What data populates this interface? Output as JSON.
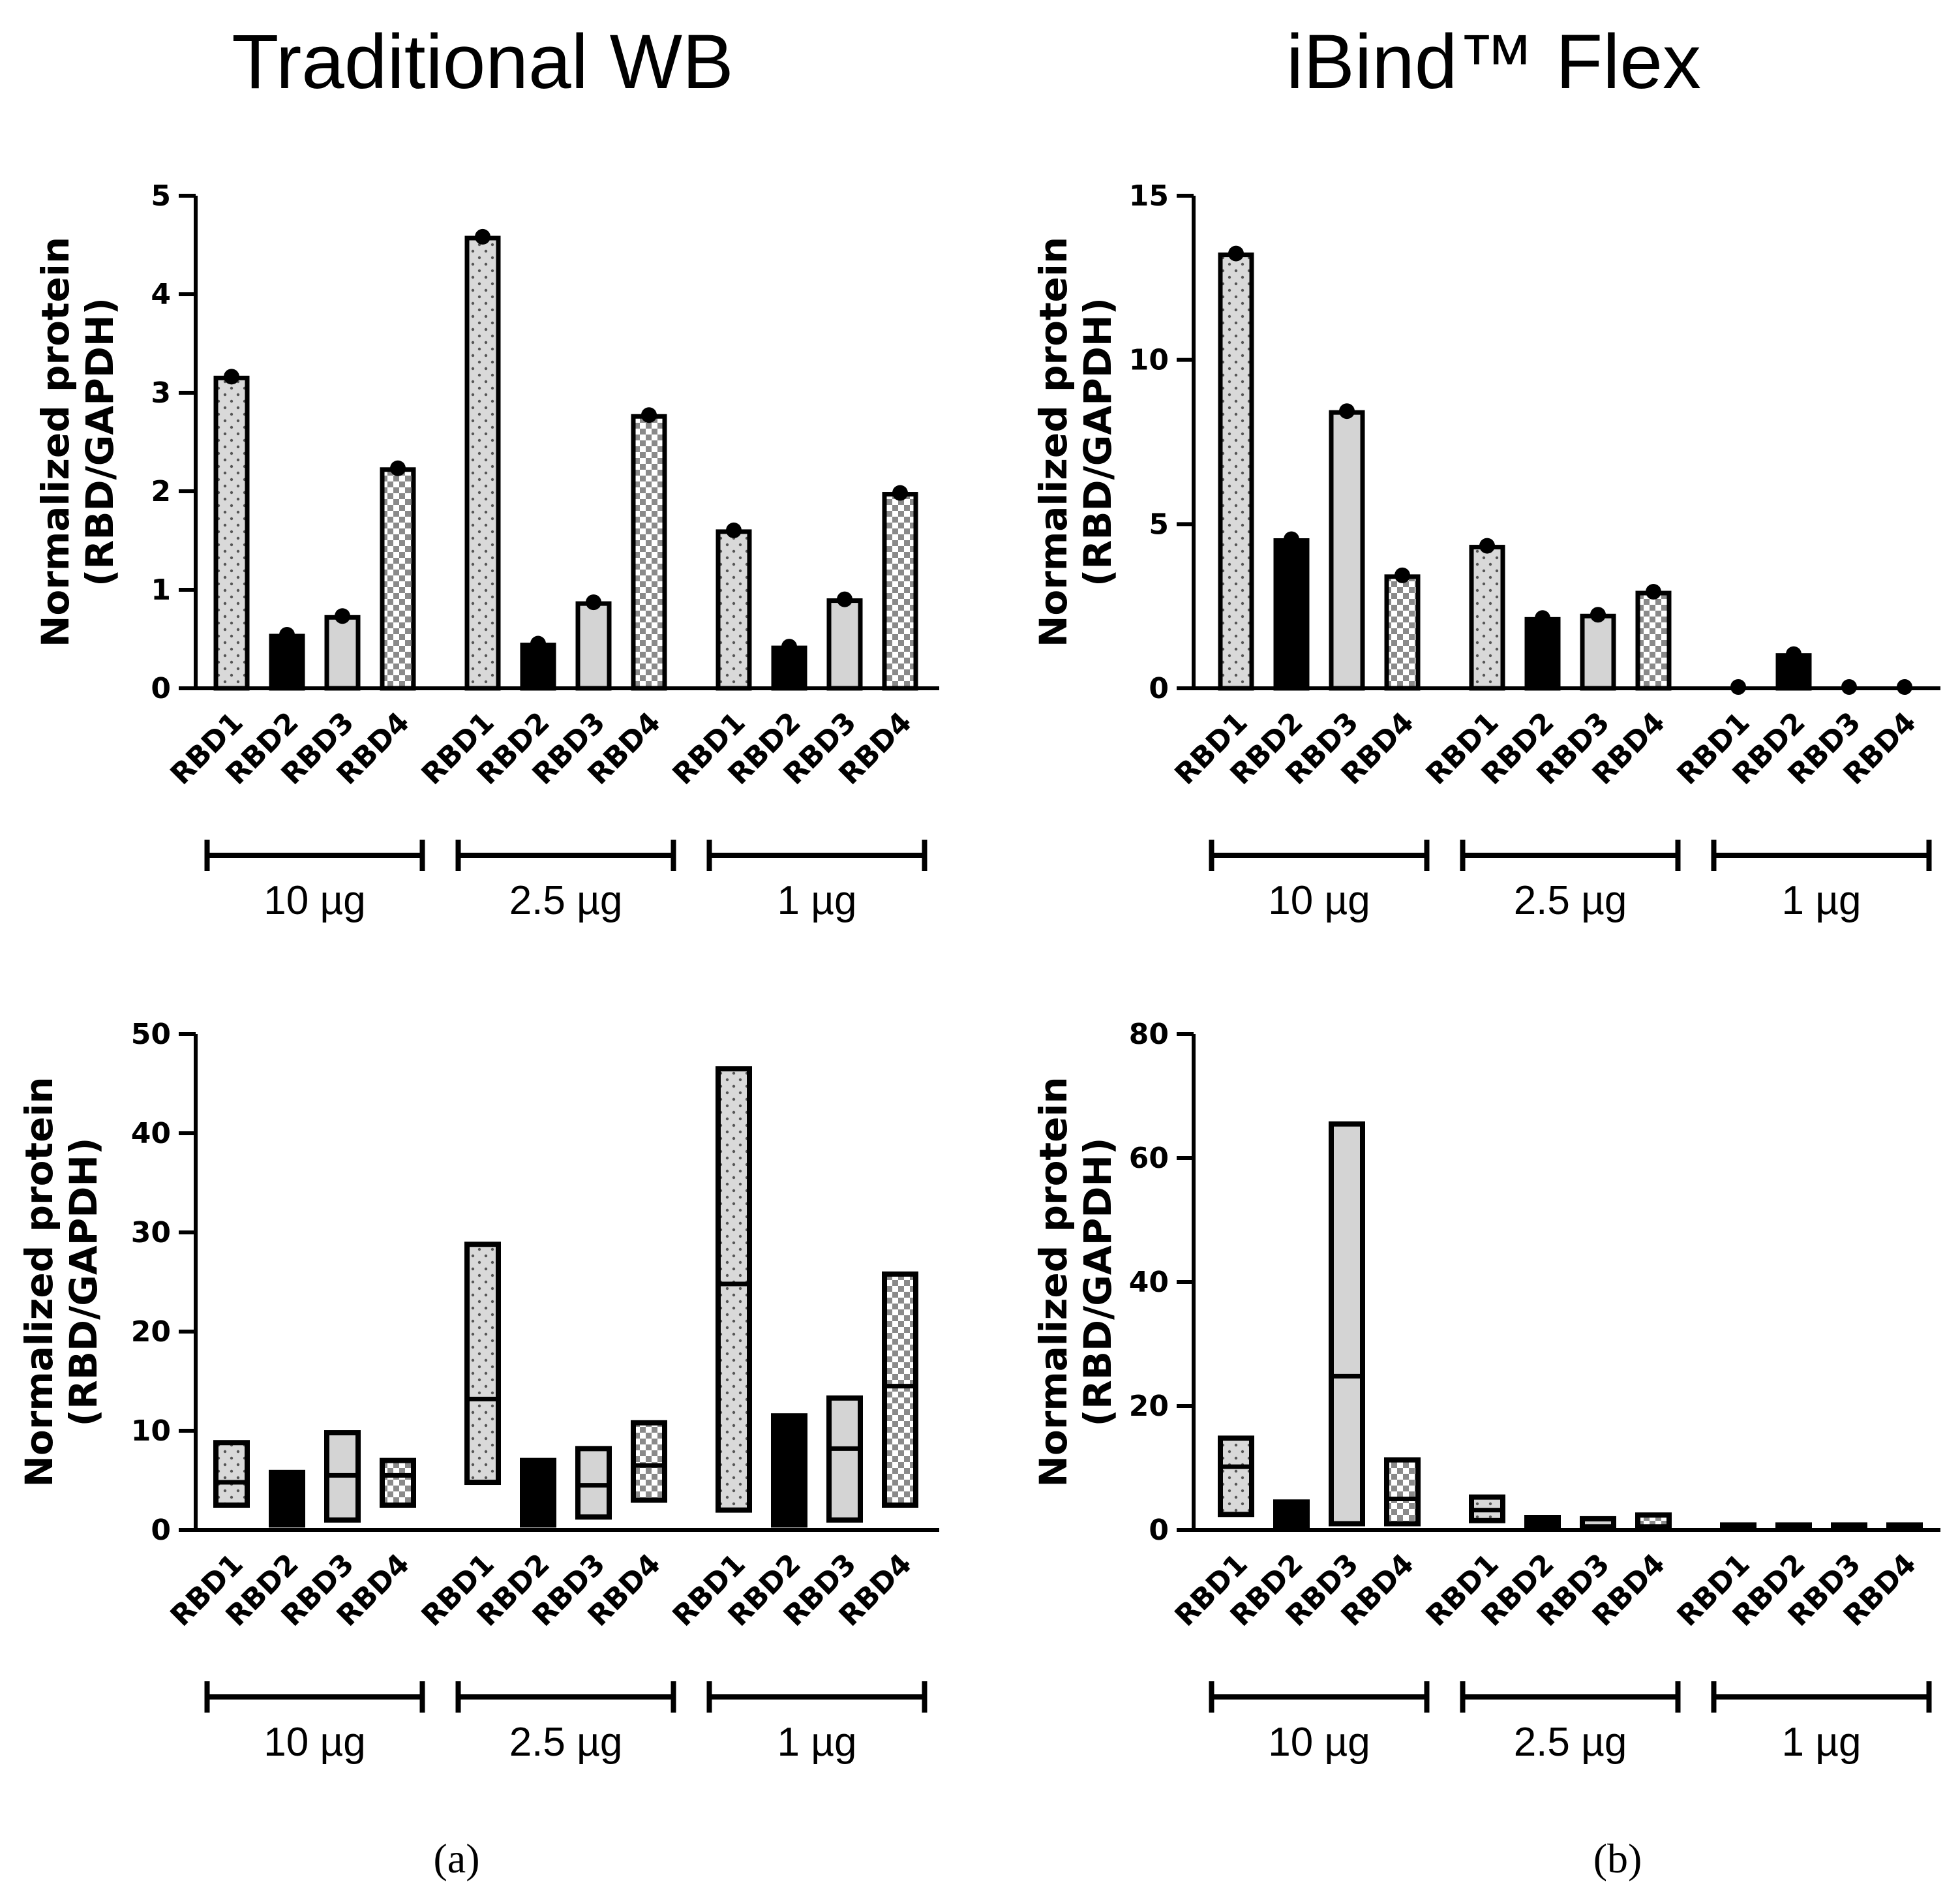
{
  "titles": {
    "left": "Traditional WB",
    "right": "iBind™ Flex"
  },
  "panel_labels": {
    "a": "(a)",
    "b": "(b)"
  },
  "colors": {
    "dotted_fill": "#d9d9d9",
    "light_fill": "#d4d4d4",
    "dark_fill": "#000000",
    "stroke": "#000000"
  },
  "chart_data": [
    {
      "id": "top-left",
      "type": "bar",
      "ylabel": [
        "Normalized protein",
        "(RBD/GAPDH)"
      ],
      "ylim": [
        0,
        5
      ],
      "yticks": [
        0,
        1,
        2,
        3,
        4,
        5
      ],
      "categories": [
        "RBD1",
        "RBD2",
        "RBD3",
        "RBD4"
      ],
      "group_labels": [
        "10 µg",
        "2.5 µg",
        "1 µg"
      ],
      "groups": [
        {
          "name": "10 µg",
          "values": [
            3.15,
            0.53,
            0.72,
            2.22
          ]
        },
        {
          "name": "2.5 µg",
          "values": [
            4.57,
            0.44,
            0.86,
            2.76
          ]
        },
        {
          "name": "1 µg",
          "values": [
            1.59,
            0.41,
            0.89,
            1.97
          ]
        }
      ]
    },
    {
      "id": "top-right",
      "type": "bar",
      "ylabel": [
        "Normalized protein",
        "(RBD/GAPDH)"
      ],
      "ylim": [
        0,
        15
      ],
      "yticks": [
        0,
        5,
        10,
        15
      ],
      "categories": [
        "RBD1",
        "RBD2",
        "RBD3",
        "RBD4"
      ],
      "group_labels": [
        "10 µg",
        "2.5 µg",
        "1 µg"
      ],
      "groups": [
        {
          "name": "10 µg",
          "values": [
            13.2,
            4.5,
            8.4,
            3.4
          ]
        },
        {
          "name": "2.5 µg",
          "values": [
            4.3,
            2.1,
            2.2,
            2.9
          ]
        },
        {
          "name": "1 µg",
          "values": [
            0,
            1.0,
            0,
            0
          ]
        }
      ]
    },
    {
      "id": "bottom-left",
      "type": "floating-bar",
      "ylabel": [
        "Normalized protein",
        "(RBD/GAPDH)"
      ],
      "ylim": [
        0,
        50
      ],
      "yticks": [
        0,
        10,
        20,
        30,
        40,
        50
      ],
      "categories": [
        "RBD1",
        "RBD2",
        "RBD3",
        "RBD4"
      ],
      "group_labels": [
        "10 µg",
        "2.5 µg",
        "1 µg"
      ],
      "groups": [
        {
          "name": "10 µg",
          "ranges": [
            [
              2.5,
              8.8,
              4.8
            ],
            [
              0.5,
              5.8,
              5.8
            ],
            [
              1.0,
              9.8,
              5.5
            ],
            [
              2.5,
              7.0,
              5.5
            ]
          ]
        },
        {
          "name": "2.5 µg",
          "ranges": [
            [
              4.8,
              28.8,
              13.2
            ],
            [
              0.5,
              7.0,
              7.0
            ],
            [
              1.3,
              8.2,
              4.5
            ],
            [
              3.0,
              10.8,
              6.5
            ]
          ]
        },
        {
          "name": "1 µg",
          "ranges": [
            [
              2.0,
              46.5,
              24.8
            ],
            [
              0.5,
              11.5,
              11.5
            ],
            [
              1.0,
              13.3,
              8.2
            ],
            [
              2.5,
              25.8,
              14.5
            ]
          ]
        }
      ]
    },
    {
      "id": "bottom-right",
      "type": "floating-bar",
      "ylabel": [
        "Normalized protein",
        "(RBD/GAPDH)"
      ],
      "ylim": [
        0,
        80
      ],
      "yticks": [
        0,
        20,
        40,
        60,
        80
      ],
      "categories": [
        "RBD1",
        "RBD2",
        "RBD3",
        "RBD4"
      ],
      "group_labels": [
        "10 µg",
        "2.5 µg",
        "1 µg"
      ],
      "groups": [
        {
          "name": "10 µg",
          "ranges": [
            [
              2.5,
              14.8,
              10.2
            ],
            [
              0.5,
              4.5,
              4.5
            ],
            [
              1.0,
              65.5,
              24.8
            ],
            [
              1.0,
              11.3,
              5.0
            ]
          ]
        },
        {
          "name": "2.5 µg",
          "ranges": [
            [
              1.5,
              5.3,
              3.2
            ],
            [
              0.5,
              2.0,
              2.0
            ],
            [
              0.5,
              1.8,
              1.8
            ],
            [
              0.5,
              2.4,
              2.4
            ]
          ]
        },
        {
          "name": "1 µg",
          "ranges": [
            [
              0.2,
              0.8,
              0.8
            ],
            [
              0.2,
              0.8,
              0.8
            ],
            [
              0.2,
              0.8,
              0.8
            ],
            [
              0.2,
              0.8,
              0.8
            ]
          ]
        }
      ]
    }
  ]
}
